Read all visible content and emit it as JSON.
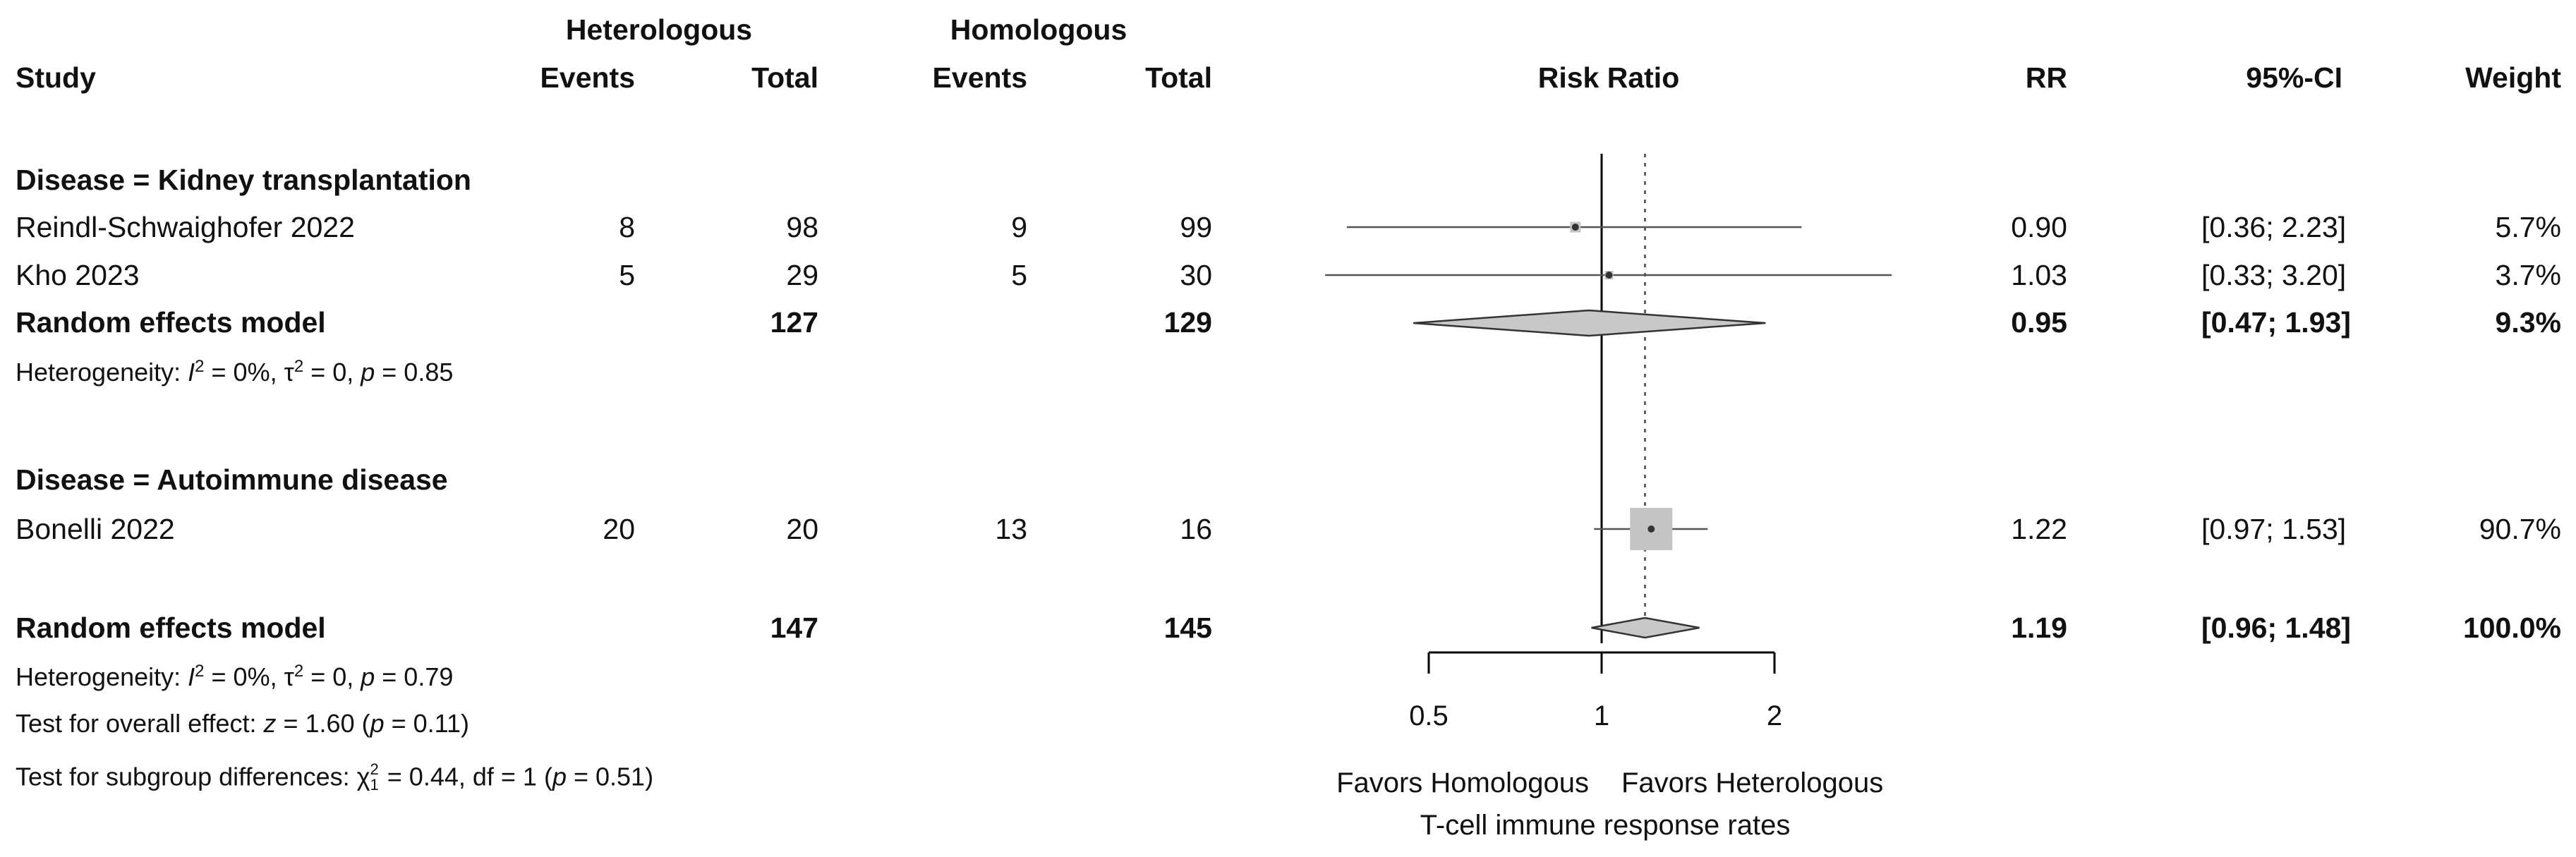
{
  "header": {
    "group1": "Heterologous",
    "group2": "Homologous",
    "study": "Study",
    "events1": "Events",
    "total1": "Total",
    "events2": "Events",
    "total2": "Total",
    "plot_title": "Risk Ratio",
    "rr": "RR",
    "ci": "95%-CI",
    "weight": "Weight"
  },
  "subgroups": [
    {
      "title": "Disease = Kidney transplantation",
      "studies": [
        {
          "name": "Reindl-Schwaighofer 2022",
          "e1": "8",
          "t1": "98",
          "e2": "9",
          "t2": "99",
          "rr": "0.90",
          "ci": "[0.36; 2.23]",
          "weight": "5.7%"
        },
        {
          "name": "Kho 2023",
          "e1": "5",
          "t1": "29",
          "e2": "5",
          "t2": "30",
          "rr": "1.03",
          "ci": "[0.33; 3.20]",
          "weight": "3.7%"
        }
      ],
      "model": {
        "label": "Random effects model",
        "t1": "127",
        "t2": "129",
        "rr": "0.95",
        "ci": "[0.47; 1.93]",
        "weight": "9.3%"
      },
      "heterogeneity": {
        "prefix": "Heterogeneity: ",
        "i2": "I",
        "i2_rest": " = 0%, ",
        "tau": "τ",
        "tau_rest": " = 0, ",
        "p": "p",
        "p_rest": " = 0.85"
      }
    },
    {
      "title": "Disease = Autoimmune disease",
      "studies": [
        {
          "name": "Bonelli 2022",
          "e1": "20",
          "t1": "20",
          "e2": "13",
          "t2": "16",
          "rr": "1.22",
          "ci": "[0.97; 1.53]",
          "weight": "90.7%"
        }
      ]
    }
  ],
  "overall": {
    "label": "Random effects model",
    "t1": "147",
    "t2": "145",
    "rr": "1.19",
    "ci": "[0.96; 1.48]",
    "weight": "100.0%",
    "heterogeneity": {
      "prefix": "Heterogeneity: ",
      "i2": "I",
      "i2_rest": " = 0%, ",
      "tau": "τ",
      "tau_rest": " = 0, ",
      "p": "p",
      "p_rest": " = 0.79"
    },
    "effect_test": {
      "prefix": "Test for overall effect: ",
      "z": "z",
      "z_rest": " = 1.60 (",
      "p": "p",
      "p_rest": " = 0.11)"
    },
    "subgroup_test": {
      "prefix": "Test for subgroup differences: ",
      "chi": "χ",
      "chi_sup": "2",
      "chi_sub": "1",
      "rest1": " = 0.44, df = 1 (",
      "p": "p",
      "rest2": " = 0.51)"
    }
  },
  "chart_data": {
    "type": "forest",
    "scale": "log",
    "xlim": [
      0.5,
      2
    ],
    "ticks": [
      0.5,
      1,
      2
    ],
    "tick_labels": [
      "0.5",
      "1",
      "2"
    ],
    "reference_line": 1,
    "pooled_line": 1.19,
    "title": "Risk Ratio",
    "favors_left": "Favors Homologous",
    "favors_right": "Favors Heterologous",
    "xlabel": "T-cell immune response rates",
    "studies": [
      {
        "name": "Reindl-Schwaighofer 2022",
        "rr": 0.9,
        "lower": 0.36,
        "upper": 2.23,
        "weight": 5.7
      },
      {
        "name": "Kho 2023",
        "rr": 1.03,
        "lower": 0.33,
        "upper": 3.2,
        "weight": 3.7
      },
      {
        "name": "Bonelli 2022",
        "rr": 1.22,
        "lower": 0.97,
        "upper": 1.53,
        "weight": 90.7
      }
    ],
    "pooled": [
      {
        "name": "Random effects model (Kidney transplantation)",
        "rr": 0.95,
        "lower": 0.47,
        "upper": 1.93
      },
      {
        "name": "Random effects model (overall)",
        "rr": 1.19,
        "lower": 0.96,
        "upper": 1.48
      }
    ]
  }
}
